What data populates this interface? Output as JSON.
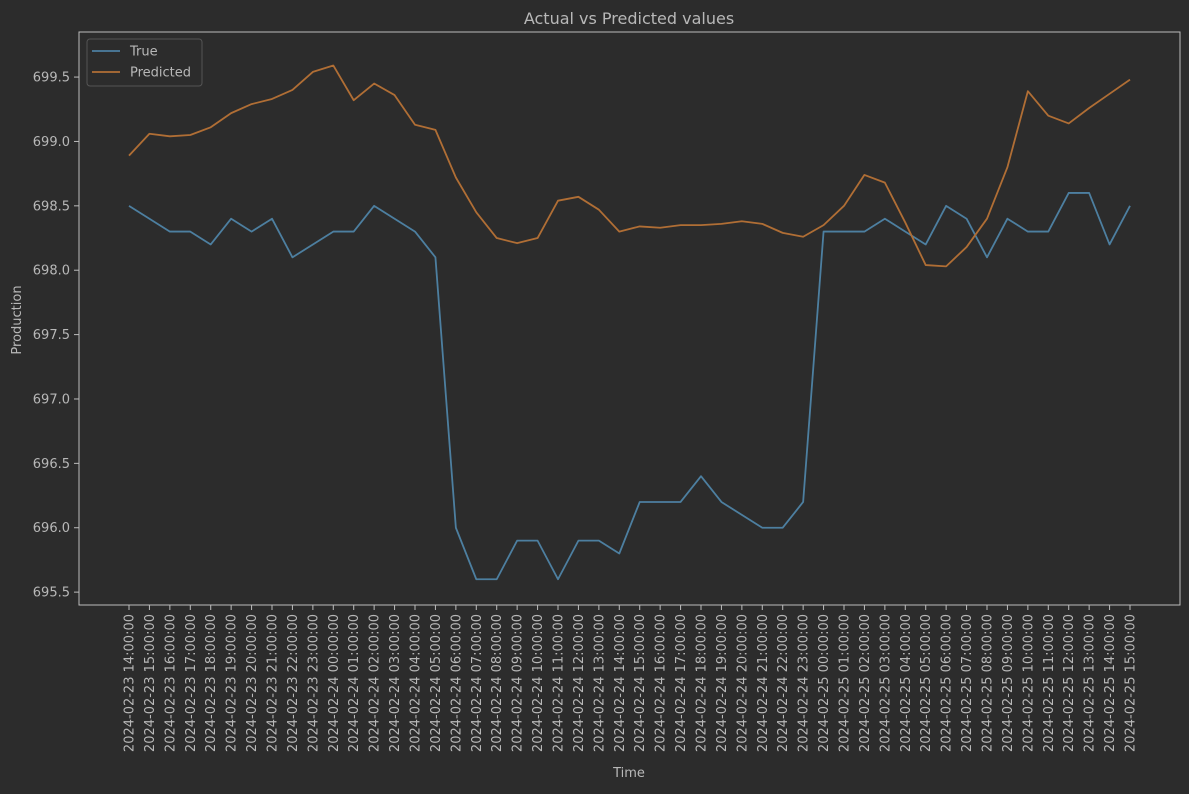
{
  "colors": {
    "background": "#2c2c2c",
    "text": "#b8b8b8",
    "axis": "#bdbdbd",
    "true_series": "#4d7fa0",
    "predicted_series": "#b06e35",
    "legend_bg": "#2c2c2c",
    "legend_border": "#555555"
  },
  "chart_data": {
    "type": "line",
    "title": "Actual vs Predicted values",
    "xlabel": "Time",
    "ylabel": "Production",
    "ylim": [
      695.4,
      699.85
    ],
    "yticks": [
      695.5,
      696.0,
      696.5,
      697.0,
      697.5,
      698.0,
      698.5,
      699.0,
      699.5
    ],
    "ytick_labels": [
      "695.5",
      "696.0",
      "696.5",
      "697.0",
      "697.5",
      "698.0",
      "698.5",
      "699.0",
      "699.5"
    ],
    "grid": false,
    "legend_position": "top-left",
    "x": [
      "2024-02-23 14:00:00",
      "2024-02-23 15:00:00",
      "2024-02-23 16:00:00",
      "2024-02-23 17:00:00",
      "2024-02-23 18:00:00",
      "2024-02-23 19:00:00",
      "2024-02-23 20:00:00",
      "2024-02-23 21:00:00",
      "2024-02-23 22:00:00",
      "2024-02-23 23:00:00",
      "2024-02-24 00:00:00",
      "2024-02-24 01:00:00",
      "2024-02-24 02:00:00",
      "2024-02-24 03:00:00",
      "2024-02-24 04:00:00",
      "2024-02-24 05:00:00",
      "2024-02-24 06:00:00",
      "2024-02-24 07:00:00",
      "2024-02-24 08:00:00",
      "2024-02-24 09:00:00",
      "2024-02-24 10:00:00",
      "2024-02-24 11:00:00",
      "2024-02-24 12:00:00",
      "2024-02-24 13:00:00",
      "2024-02-24 14:00:00",
      "2024-02-24 15:00:00",
      "2024-02-24 16:00:00",
      "2024-02-24 17:00:00",
      "2024-02-24 18:00:00",
      "2024-02-24 19:00:00",
      "2024-02-24 20:00:00",
      "2024-02-24 21:00:00",
      "2024-02-24 22:00:00",
      "2024-02-24 23:00:00",
      "2024-02-25 00:00:00",
      "2024-02-25 01:00:00",
      "2024-02-25 02:00:00",
      "2024-02-25 03:00:00",
      "2024-02-25 04:00:00",
      "2024-02-25 05:00:00",
      "2024-02-25 06:00:00",
      "2024-02-25 07:00:00",
      "2024-02-25 08:00:00",
      "2024-02-25 09:00:00",
      "2024-02-25 10:00:00",
      "2024-02-25 11:00:00",
      "2024-02-25 12:00:00",
      "2024-02-25 13:00:00",
      "2024-02-25 14:00:00",
      "2024-02-25 15:00:00"
    ],
    "series": [
      {
        "name": "True",
        "color": "#4d7fa0",
        "values": [
          698.5,
          698.4,
          698.3,
          698.3,
          698.2,
          698.4,
          698.3,
          698.4,
          698.1,
          698.2,
          698.3,
          698.3,
          698.5,
          698.4,
          698.3,
          698.1,
          696.0,
          695.6,
          695.6,
          695.9,
          695.9,
          695.6,
          695.9,
          695.9,
          695.8,
          696.2,
          696.2,
          696.2,
          696.4,
          696.2,
          696.1,
          696.0,
          696.0,
          696.2,
          698.3,
          698.3,
          698.3,
          698.4,
          698.3,
          698.2,
          698.5,
          698.4,
          698.1,
          698.4,
          698.3,
          698.3,
          698.6,
          698.6,
          698.2,
          698.5
        ]
      },
      {
        "name": "Predicted",
        "color": "#b06e35",
        "values": [
          698.89,
          699.06,
          699.04,
          699.05,
          699.11,
          699.22,
          699.29,
          699.33,
          699.4,
          699.54,
          699.59,
          699.32,
          699.45,
          699.36,
          699.13,
          699.09,
          698.72,
          698.45,
          698.25,
          698.21,
          698.25,
          698.54,
          698.57,
          698.47,
          698.3,
          698.34,
          698.33,
          698.35,
          698.35,
          698.36,
          698.38,
          698.36,
          698.29,
          698.26,
          698.35,
          698.5,
          698.74,
          698.68,
          698.37,
          698.04,
          698.03,
          698.18,
          698.4,
          698.8,
          699.39,
          699.2,
          699.14,
          699.26,
          699.37,
          699.48
        ]
      }
    ]
  }
}
